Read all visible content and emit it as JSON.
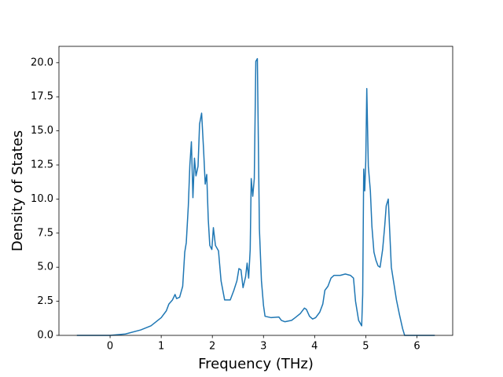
{
  "chart_data": {
    "type": "line",
    "xlabel": "Frequency (THz)",
    "ylabel": "Density of States",
    "xlim": [
      -1,
      6.7
    ],
    "ylim": [
      0,
      21.2
    ],
    "xticks": [
      0,
      1,
      2,
      3,
      4,
      5,
      6
    ],
    "yticks": [
      {
        "value": 0,
        "label": "0.0"
      },
      {
        "value": 2.5,
        "label": "2.5"
      },
      {
        "value": 5,
        "label": "5.0"
      },
      {
        "value": 7.5,
        "label": "7.5"
      },
      {
        "value": 10,
        "label": "10.0"
      },
      {
        "value": 12.5,
        "label": "12.5"
      },
      {
        "value": 15,
        "label": "15.0"
      },
      {
        "value": 17.5,
        "label": "17.5"
      },
      {
        "value": 20,
        "label": "20.0"
      }
    ],
    "x": [
      -0.65,
      0,
      0.3,
      0.6,
      0.8,
      1.0,
      1.1,
      1.15,
      1.22,
      1.27,
      1.3,
      1.36,
      1.42,
      1.46,
      1.49,
      1.53,
      1.56,
      1.59,
      1.62,
      1.65,
      1.68,
      1.72,
      1.75,
      1.79,
      1.83,
      1.86,
      1.89,
      1.92,
      1.95,
      1.99,
      2.02,
      2.06,
      2.12,
      2.17,
      2.24,
      2.35,
      2.42,
      2.48,
      2.52,
      2.56,
      2.6,
      2.65,
      2.68,
      2.71,
      2.74,
      2.76,
      2.79,
      2.82,
      2.85,
      2.88,
      2.92,
      2.96,
      3.0,
      3.03,
      3.15,
      3.3,
      3.35,
      3.42,
      3.55,
      3.62,
      3.72,
      3.8,
      3.84,
      3.9,
      3.96,
      4.02,
      4.1,
      4.16,
      4.2,
      4.26,
      4.32,
      4.38,
      4.5,
      4.6,
      4.7,
      4.76,
      4.8,
      4.86,
      4.92,
      4.94,
      4.96,
      4.98,
      5.0,
      5.02,
      5.05,
      5.09,
      5.12,
      5.16,
      5.2,
      5.24,
      5.28,
      5.33,
      5.37,
      5.4,
      5.44,
      5.47,
      5.5,
      5.55,
      5.6,
      5.66,
      5.72,
      5.76,
      6.35
    ],
    "series": [
      {
        "name": "DOS",
        "color": "#1f77b4",
        "values": [
          0,
          0,
          0.1,
          0.4,
          0.7,
          1.3,
          1.8,
          2.3,
          2.6,
          3.0,
          2.7,
          2.8,
          3.6,
          6.1,
          6.8,
          9.5,
          12.5,
          14.2,
          10.1,
          13.0,
          11.7,
          12.4,
          15.5,
          16.3,
          13.5,
          11.1,
          11.8,
          8.5,
          6.6,
          6.3,
          7.9,
          6.6,
          6.2,
          4.0,
          2.6,
          2.6,
          3.3,
          4.0,
          4.9,
          4.8,
          3.5,
          4.3,
          5.3,
          4.2,
          6.3,
          11.5,
          10.2,
          11.5,
          20.1,
          20.3,
          7.8,
          4.0,
          2.2,
          1.4,
          1.3,
          1.35,
          1.1,
          1.0,
          1.1,
          1.3,
          1.6,
          2.0,
          1.9,
          1.4,
          1.2,
          1.3,
          1.7,
          2.3,
          3.3,
          3.6,
          4.2,
          4.4,
          4.4,
          4.5,
          4.4,
          4.2,
          2.5,
          1.1,
          0.7,
          3.0,
          12.2,
          10.6,
          12.8,
          18.1,
          12.4,
          10.6,
          8.0,
          6.1,
          5.5,
          5.1,
          5.0,
          6.3,
          8.0,
          9.5,
          10.0,
          7.5,
          5.0,
          3.8,
          2.6,
          1.5,
          0.5,
          0,
          0
        ]
      }
    ]
  }
}
